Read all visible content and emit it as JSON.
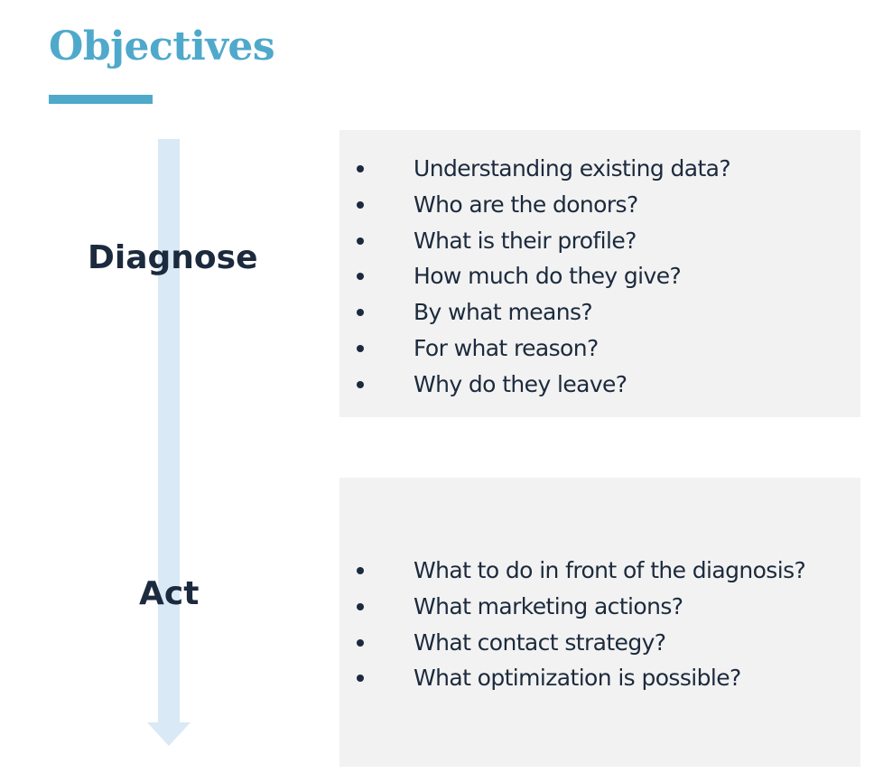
{
  "title": "Objectives",
  "phases": {
    "diagnose": {
      "label": "Diagnose",
      "items": [
        "Understanding existing data?",
        "Who are the donors?",
        "What is their profile?",
        "How much do they give?",
        "By what means?",
        "For what reason?",
        "Why do they leave?"
      ]
    },
    "act": {
      "label": "Act",
      "items": [
        "What to do in front of the diagnosis?",
        "What marketing actions?",
        "What contact strategy?",
        "What optimization is possible?"
      ]
    }
  },
  "colors": {
    "accent": "#4fa9cb",
    "arrow": "#d9e9f5",
    "text": "#1c2a3d",
    "panel": "#f2f2f2"
  }
}
